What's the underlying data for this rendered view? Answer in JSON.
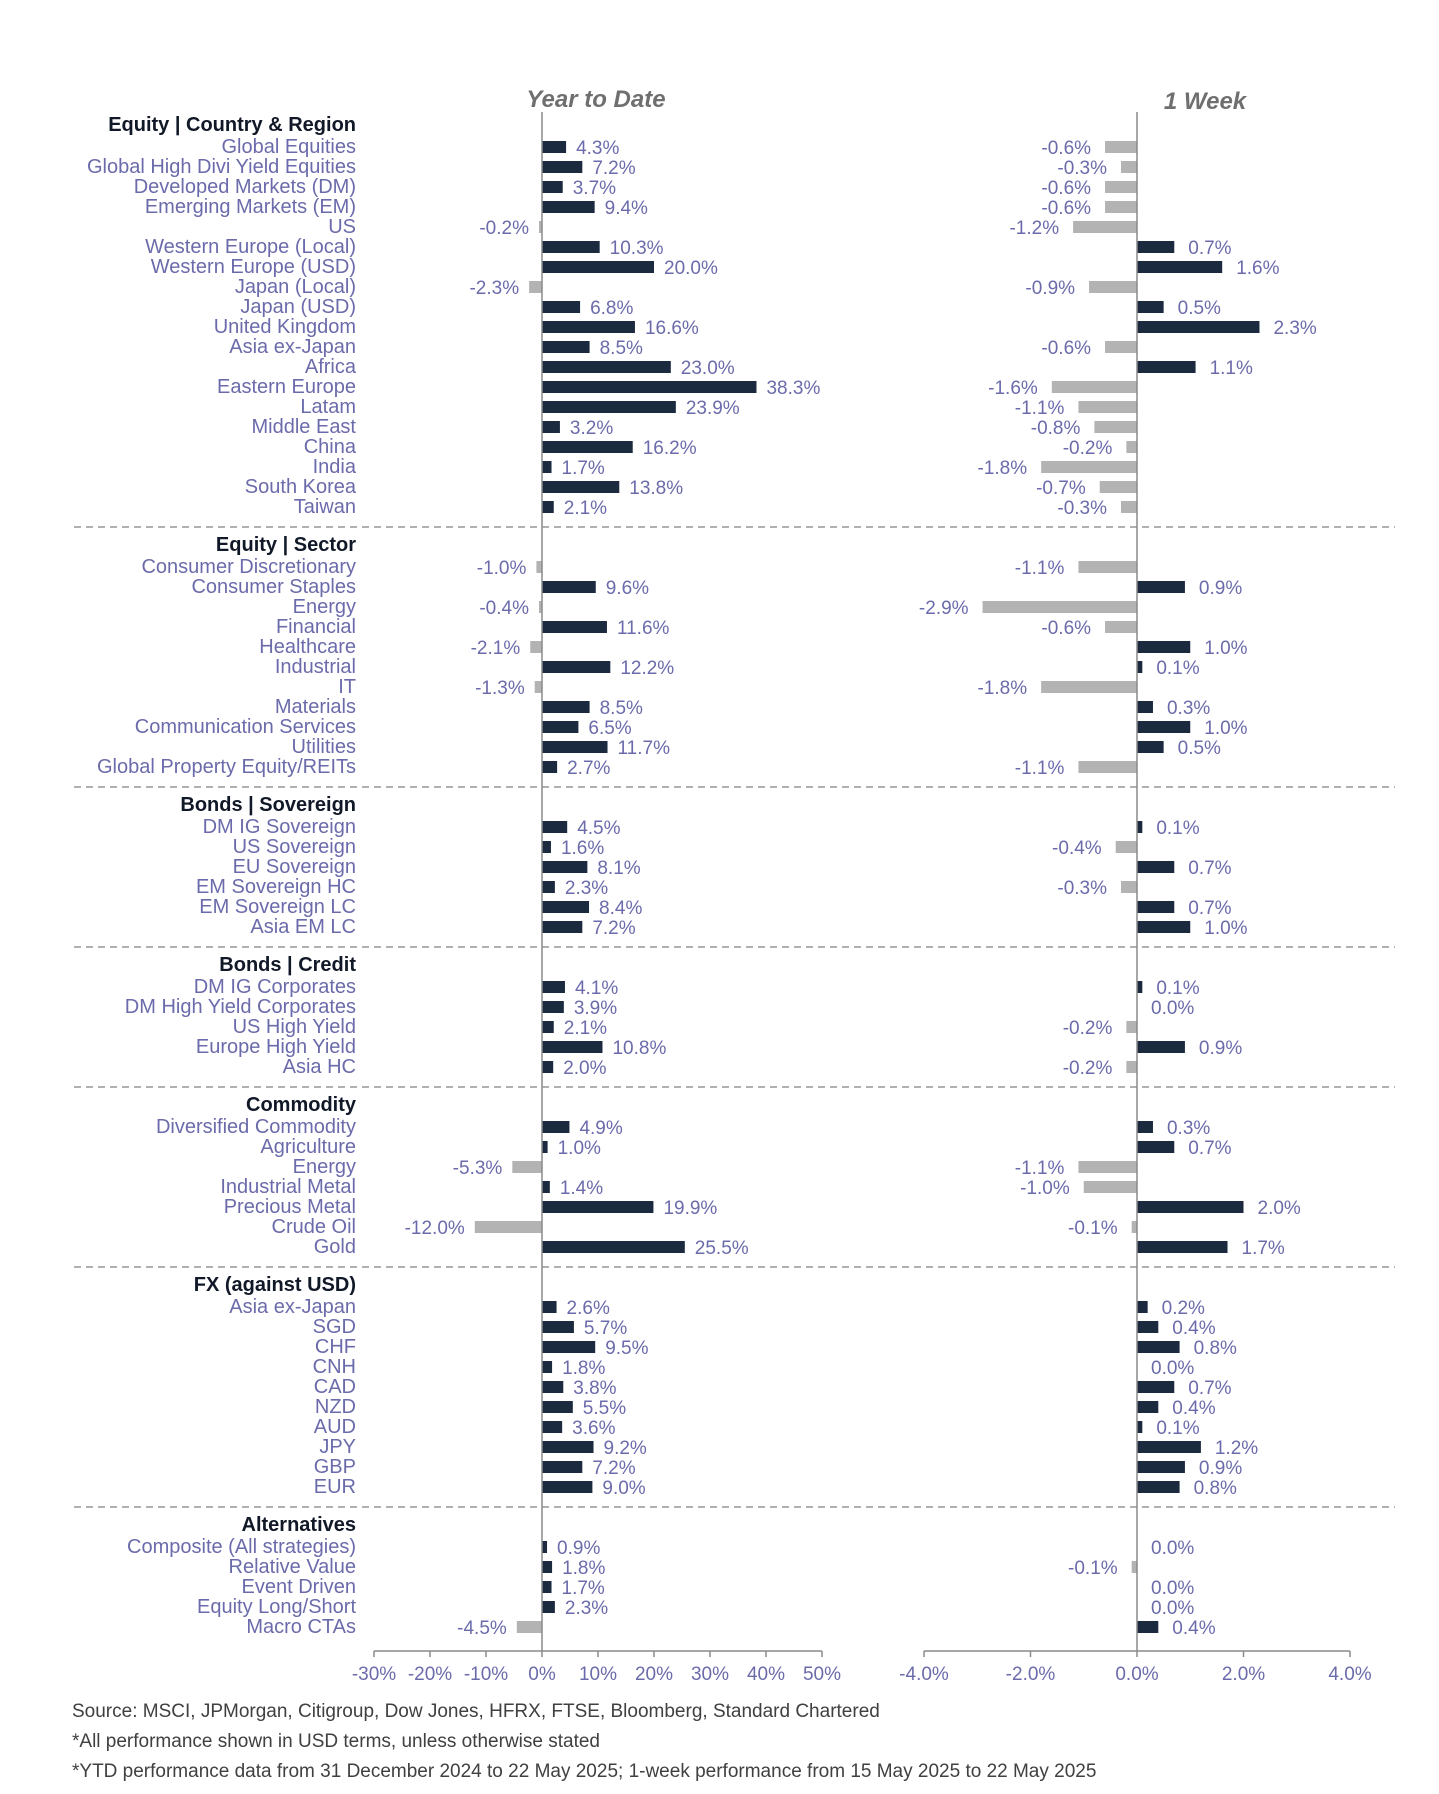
{
  "chart_data": [
    {
      "type": "bar",
      "orientation": "horizontal",
      "title": "Year to Date",
      "unit": "%",
      "xlim": [
        -30,
        50
      ],
      "xticks": [
        -30,
        -20,
        -10,
        0,
        10,
        20,
        30,
        40,
        50
      ],
      "tick_labels": [
        "-30%",
        "-20%",
        "-10%",
        "0%",
        "10%",
        "20%",
        "30%",
        "40%",
        "50%"
      ],
      "colors": {
        "positive": "#1b2a3e",
        "negative": "#b3b3b3"
      }
    },
    {
      "type": "bar",
      "orientation": "horizontal",
      "title": "1 Week",
      "unit": "%",
      "xlim": [
        -4,
        4
      ],
      "xticks": [
        -4,
        -2,
        0,
        2,
        4
      ],
      "tick_labels": [
        "-4.0%",
        "-2.0%",
        "0.0%",
        "2.0%",
        "4.0%"
      ],
      "colors": {
        "positive": "#1b2a3e",
        "negative": "#b3b3b3"
      }
    }
  ],
  "groups": [
    {
      "header": "Equity | Country & Region",
      "rows": [
        {
          "label": "Global Equities",
          "ytd": 4.3,
          "wk": -0.6
        },
        {
          "label": "Global High Divi Yield Equities",
          "ytd": 7.2,
          "wk": -0.3
        },
        {
          "label": "Developed Markets (DM)",
          "ytd": 3.7,
          "wk": -0.6
        },
        {
          "label": "Emerging Markets (EM)",
          "ytd": 9.4,
          "wk": -0.6
        },
        {
          "label": "US",
          "ytd": -0.2,
          "wk": -1.2
        },
        {
          "label": "Western Europe (Local)",
          "ytd": 10.3,
          "wk": 0.7
        },
        {
          "label": "Western Europe (USD)",
          "ytd": 20.0,
          "wk": 1.6
        },
        {
          "label": "Japan (Local)",
          "ytd": -2.3,
          "wk": -0.9
        },
        {
          "label": "Japan (USD)",
          "ytd": 6.8,
          "wk": 0.5
        },
        {
          "label": "United Kingdom",
          "ytd": 16.6,
          "wk": 2.3
        },
        {
          "label": "Asia ex-Japan",
          "ytd": 8.5,
          "wk": -0.6
        },
        {
          "label": "Africa",
          "ytd": 23.0,
          "wk": 1.1
        },
        {
          "label": "Eastern Europe",
          "ytd": 38.3,
          "wk": -1.6
        },
        {
          "label": "Latam",
          "ytd": 23.9,
          "wk": -1.1
        },
        {
          "label": "Middle East",
          "ytd": 3.2,
          "wk": -0.8
        },
        {
          "label": "China",
          "ytd": 16.2,
          "wk": -0.2
        },
        {
          "label": "India",
          "ytd": 1.7,
          "wk": -1.8
        },
        {
          "label": "South Korea",
          "ytd": 13.8,
          "wk": -0.7
        },
        {
          "label": "Taiwan",
          "ytd": 2.1,
          "wk": -0.3
        }
      ]
    },
    {
      "header": "Equity | Sector",
      "rows": [
        {
          "label": "Consumer Discretionary",
          "ytd": -1.0,
          "wk": -1.1
        },
        {
          "label": "Consumer Staples",
          "ytd": 9.6,
          "wk": 0.9
        },
        {
          "label": "Energy",
          "ytd": -0.4,
          "wk": -2.9
        },
        {
          "label": "Financial",
          "ytd": 11.6,
          "wk": -0.6
        },
        {
          "label": "Healthcare",
          "ytd": -2.1,
          "wk": 1.0
        },
        {
          "label": "Industrial",
          "ytd": 12.2,
          "wk": 0.1
        },
        {
          "label": "IT",
          "ytd": -1.3,
          "wk": -1.8
        },
        {
          "label": "Materials",
          "ytd": 8.5,
          "wk": 0.3
        },
        {
          "label": "Communication Services",
          "ytd": 6.5,
          "wk": 1.0
        },
        {
          "label": "Utilities",
          "ytd": 11.7,
          "wk": 0.5
        },
        {
          "label": "Global Property Equity/REITs",
          "ytd": 2.7,
          "wk": -1.1
        }
      ]
    },
    {
      "header": "Bonds | Sovereign",
      "rows": [
        {
          "label": "DM IG Sovereign",
          "ytd": 4.5,
          "wk": 0.1
        },
        {
          "label": "US Sovereign",
          "ytd": 1.6,
          "wk": -0.4
        },
        {
          "label": "EU Sovereign",
          "ytd": 8.1,
          "wk": 0.7
        },
        {
          "label": "EM Sovereign HC",
          "ytd": 2.3,
          "wk": -0.3
        },
        {
          "label": "EM Sovereign LC",
          "ytd": 8.4,
          "wk": 0.7
        },
        {
          "label": "Asia EM LC",
          "ytd": 7.2,
          "wk": 1.0
        }
      ]
    },
    {
      "header": "Bonds | Credit",
      "rows": [
        {
          "label": "DM IG Corporates",
          "ytd": 4.1,
          "wk": 0.1
        },
        {
          "label": "DM High Yield Corporates",
          "ytd": 3.9,
          "wk": 0.0
        },
        {
          "label": "US High Yield",
          "ytd": 2.1,
          "wk": -0.2
        },
        {
          "label": "Europe High Yield",
          "ytd": 10.8,
          "wk": 0.9
        },
        {
          "label": "Asia HC",
          "ytd": 2.0,
          "wk": -0.2
        }
      ]
    },
    {
      "header": "Commodity",
      "rows": [
        {
          "label": "Diversified Commodity",
          "ytd": 4.9,
          "wk": 0.3
        },
        {
          "label": "Agriculture",
          "ytd": 1.0,
          "wk": 0.7
        },
        {
          "label": "Energy",
          "ytd": -5.3,
          "wk": -1.1
        },
        {
          "label": "Industrial Metal",
          "ytd": 1.4,
          "wk": -1.0
        },
        {
          "label": "Precious Metal",
          "ytd": 19.9,
          "wk": 2.0
        },
        {
          "label": "Crude Oil",
          "ytd": -12.0,
          "wk": -0.1
        },
        {
          "label": "Gold",
          "ytd": 25.5,
          "wk": 1.7
        }
      ]
    },
    {
      "header": "FX (against USD)",
      "rows": [
        {
          "label": "Asia ex-Japan",
          "ytd": 2.6,
          "wk": 0.2
        },
        {
          "label": "SGD",
          "ytd": 5.7,
          "wk": 0.4
        },
        {
          "label": "CHF",
          "ytd": 9.5,
          "wk": 0.8
        },
        {
          "label": "CNH",
          "ytd": 1.8,
          "wk": 0.0
        },
        {
          "label": "CAD",
          "ytd": 3.8,
          "wk": 0.7
        },
        {
          "label": "NZD",
          "ytd": 5.5,
          "wk": 0.4
        },
        {
          "label": "AUD",
          "ytd": 3.6,
          "wk": 0.1
        },
        {
          "label": "JPY",
          "ytd": 9.2,
          "wk": 1.2
        },
        {
          "label": "GBP",
          "ytd": 7.2,
          "wk": 0.9
        },
        {
          "label": "EUR",
          "ytd": 9.0,
          "wk": 0.8
        }
      ]
    },
    {
      "header": "Alternatives",
      "rows": [
        {
          "label": "Composite (All strategies)",
          "ytd": 0.9,
          "wk": 0.0
        },
        {
          "label": "Relative Value",
          "ytd": 1.8,
          "wk": -0.1
        },
        {
          "label": "Event Driven",
          "ytd": 1.7,
          "wk": 0.0
        },
        {
          "label": "Equity Long/Short",
          "ytd": 2.3,
          "wk": 0.0
        },
        {
          "label": "Macro CTAs",
          "ytd": -4.5,
          "wk": 0.4
        }
      ]
    }
  ],
  "footnotes": {
    "source": "Source: MSCI, JPMorgan, Citigroup, Dow Jones, HFRX, FTSE, Bloomberg, Standard Chartered",
    "note1": "*All performance shown in USD terms, unless otherwise stated",
    "note2": "*YTD performance data from 31 December 2024 to 22 May 2025; 1-week performance from 15 May 2025 to 22 May 2025"
  }
}
